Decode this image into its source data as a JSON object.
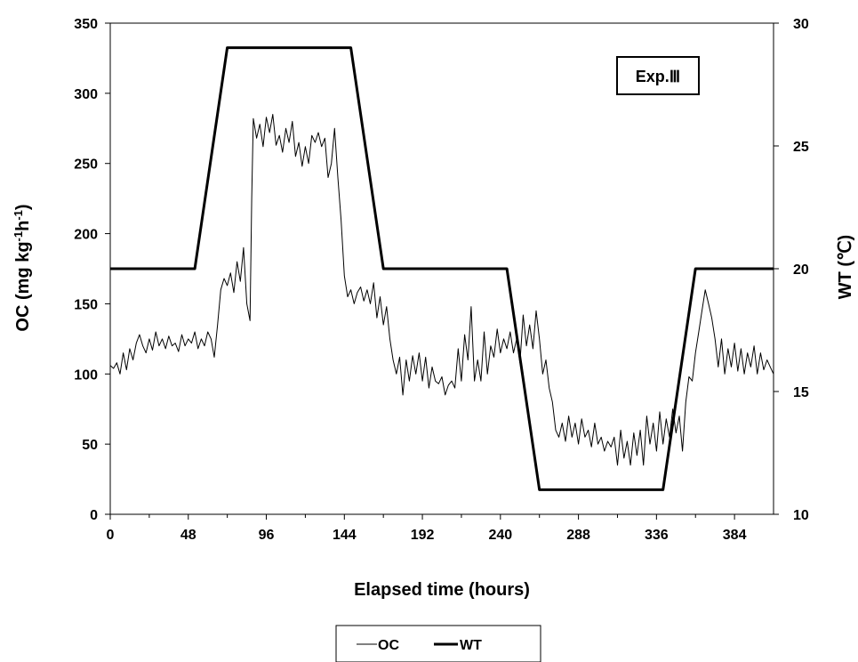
{
  "chart_data": {
    "type": "line",
    "xlabel": "Elapsed time (hours)",
    "ylabel_left": "OC (mg kg-1h-1)",
    "ylabel_left_parts": {
      "base": "OC (mg kg",
      "sup1": "-1",
      "mid": "h",
      "sup2": "-1",
      "end": ")"
    },
    "ylabel_right": "WT (℃)",
    "annotation": "Exp.Ⅲ",
    "xlim": [
      0,
      408
    ],
    "ylim_left": [
      0,
      350
    ],
    "ylim_right": [
      10,
      30
    ],
    "x_ticks": [
      "0",
      "48",
      "96",
      "144",
      "192",
      "240",
      "288",
      "336",
      "384"
    ],
    "y_left_ticks": [
      "0",
      "50",
      "100",
      "150",
      "200",
      "250",
      "300",
      "350"
    ],
    "y_right_ticks": [
      "10",
      "15",
      "20",
      "25",
      "30"
    ],
    "legend": {
      "position": "bottom-center",
      "entries": [
        "OC",
        "WT"
      ]
    },
    "series": [
      {
        "name": "OC",
        "axis": "left",
        "points": [
          [
            0,
            106
          ],
          [
            2,
            104
          ],
          [
            4,
            108
          ],
          [
            6,
            100
          ],
          [
            8,
            115
          ],
          [
            10,
            103
          ],
          [
            12,
            118
          ],
          [
            14,
            110
          ],
          [
            16,
            122
          ],
          [
            18,
            128
          ],
          [
            20,
            120
          ],
          [
            22,
            115
          ],
          [
            24,
            125
          ],
          [
            26,
            117
          ],
          [
            28,
            130
          ],
          [
            30,
            120
          ],
          [
            32,
            125
          ],
          [
            34,
            118
          ],
          [
            36,
            127
          ],
          [
            38,
            120
          ],
          [
            40,
            122
          ],
          [
            42,
            116
          ],
          [
            44,
            128
          ],
          [
            46,
            120
          ],
          [
            48,
            125
          ],
          [
            50,
            122
          ],
          [
            52,
            130
          ],
          [
            54,
            118
          ],
          [
            56,
            125
          ],
          [
            58,
            120
          ],
          [
            60,
            130
          ],
          [
            62,
            125
          ],
          [
            64,
            112
          ],
          [
            66,
            135
          ],
          [
            68,
            160
          ],
          [
            70,
            168
          ],
          [
            72,
            163
          ],
          [
            74,
            172
          ],
          [
            76,
            158
          ],
          [
            78,
            180
          ],
          [
            80,
            166
          ],
          [
            82,
            190
          ],
          [
            84,
            150
          ],
          [
            86,
            138
          ],
          [
            87,
            225
          ],
          [
            88,
            282
          ],
          [
            90,
            268
          ],
          [
            92,
            278
          ],
          [
            94,
            262
          ],
          [
            96,
            283
          ],
          [
            98,
            272
          ],
          [
            100,
            285
          ],
          [
            102,
            263
          ],
          [
            104,
            270
          ],
          [
            106,
            258
          ],
          [
            108,
            275
          ],
          [
            110,
            265
          ],
          [
            112,
            280
          ],
          [
            114,
            255
          ],
          [
            116,
            265
          ],
          [
            118,
            248
          ],
          [
            120,
            262
          ],
          [
            122,
            250
          ],
          [
            124,
            270
          ],
          [
            126,
            265
          ],
          [
            128,
            272
          ],
          [
            130,
            262
          ],
          [
            132,
            268
          ],
          [
            134,
            240
          ],
          [
            136,
            250
          ],
          [
            138,
            275
          ],
          [
            140,
            240
          ],
          [
            142,
            210
          ],
          [
            144,
            170
          ],
          [
            146,
            155
          ],
          [
            148,
            160
          ],
          [
            150,
            150
          ],
          [
            152,
            158
          ],
          [
            154,
            162
          ],
          [
            156,
            152
          ],
          [
            158,
            160
          ],
          [
            160,
            150
          ],
          [
            162,
            165
          ],
          [
            164,
            140
          ],
          [
            166,
            155
          ],
          [
            168,
            135
          ],
          [
            170,
            148
          ],
          [
            172,
            125
          ],
          [
            174,
            110
          ],
          [
            176,
            100
          ],
          [
            178,
            112
          ],
          [
            180,
            85
          ],
          [
            182,
            110
          ],
          [
            184,
            95
          ],
          [
            186,
            113
          ],
          [
            188,
            100
          ],
          [
            190,
            115
          ],
          [
            192,
            95
          ],
          [
            194,
            112
          ],
          [
            196,
            90
          ],
          [
            198,
            105
          ],
          [
            200,
            95
          ],
          [
            202,
            93
          ],
          [
            204,
            98
          ],
          [
            206,
            85
          ],
          [
            208,
            92
          ],
          [
            210,
            95
          ],
          [
            212,
            90
          ],
          [
            214,
            118
          ],
          [
            216,
            95
          ],
          [
            218,
            128
          ],
          [
            220,
            110
          ],
          [
            222,
            148
          ],
          [
            224,
            95
          ],
          [
            226,
            110
          ],
          [
            228,
            95
          ],
          [
            230,
            130
          ],
          [
            232,
            100
          ],
          [
            234,
            120
          ],
          [
            236,
            112
          ],
          [
            238,
            132
          ],
          [
            240,
            115
          ],
          [
            242,
            125
          ],
          [
            244,
            118
          ],
          [
            246,
            130
          ],
          [
            248,
            115
          ],
          [
            250,
            125
          ],
          [
            252,
            108
          ],
          [
            254,
            142
          ],
          [
            256,
            120
          ],
          [
            258,
            135
          ],
          [
            260,
            118
          ],
          [
            262,
            145
          ],
          [
            264,
            125
          ],
          [
            266,
            100
          ],
          [
            268,
            110
          ],
          [
            270,
            90
          ],
          [
            272,
            80
          ],
          [
            274,
            60
          ],
          [
            276,
            55
          ],
          [
            278,
            65
          ],
          [
            280,
            52
          ],
          [
            282,
            70
          ],
          [
            284,
            55
          ],
          [
            286,
            65
          ],
          [
            288,
            50
          ],
          [
            290,
            68
          ],
          [
            292,
            55
          ],
          [
            294,
            60
          ],
          [
            296,
            48
          ],
          [
            298,
            65
          ],
          [
            300,
            50
          ],
          [
            302,
            55
          ],
          [
            304,
            45
          ],
          [
            306,
            52
          ],
          [
            308,
            48
          ],
          [
            310,
            55
          ],
          [
            312,
            35
          ],
          [
            314,
            60
          ],
          [
            316,
            40
          ],
          [
            318,
            52
          ],
          [
            320,
            35
          ],
          [
            322,
            58
          ],
          [
            324,
            42
          ],
          [
            326,
            60
          ],
          [
            328,
            35
          ],
          [
            330,
            70
          ],
          [
            332,
            50
          ],
          [
            334,
            65
          ],
          [
            336,
            45
          ],
          [
            338,
            73
          ],
          [
            340,
            50
          ],
          [
            342,
            68
          ],
          [
            344,
            55
          ],
          [
            346,
            75
          ],
          [
            348,
            58
          ],
          [
            350,
            70
          ],
          [
            352,
            45
          ],
          [
            354,
            80
          ],
          [
            356,
            98
          ],
          [
            358,
            95
          ],
          [
            360,
            115
          ],
          [
            362,
            130
          ],
          [
            364,
            145
          ],
          [
            366,
            160
          ],
          [
            368,
            150
          ],
          [
            370,
            140
          ],
          [
            372,
            125
          ],
          [
            374,
            105
          ],
          [
            376,
            125
          ],
          [
            378,
            100
          ],
          [
            380,
            118
          ],
          [
            382,
            105
          ],
          [
            384,
            122
          ],
          [
            386,
            102
          ],
          [
            388,
            118
          ],
          [
            390,
            100
          ],
          [
            392,
            115
          ],
          [
            394,
            105
          ],
          [
            396,
            120
          ],
          [
            398,
            100
          ],
          [
            400,
            115
          ],
          [
            402,
            103
          ],
          [
            404,
            110
          ],
          [
            406,
            105
          ],
          [
            408,
            100
          ]
        ]
      },
      {
        "name": "WT",
        "axis": "right",
        "points": [
          [
            0,
            20
          ],
          [
            52,
            20
          ],
          [
            72,
            29
          ],
          [
            148,
            29
          ],
          [
            168,
            20
          ],
          [
            244,
            20
          ],
          [
            264,
            11
          ],
          [
            340,
            11
          ],
          [
            360,
            20
          ],
          [
            408,
            20
          ]
        ]
      }
    ]
  }
}
